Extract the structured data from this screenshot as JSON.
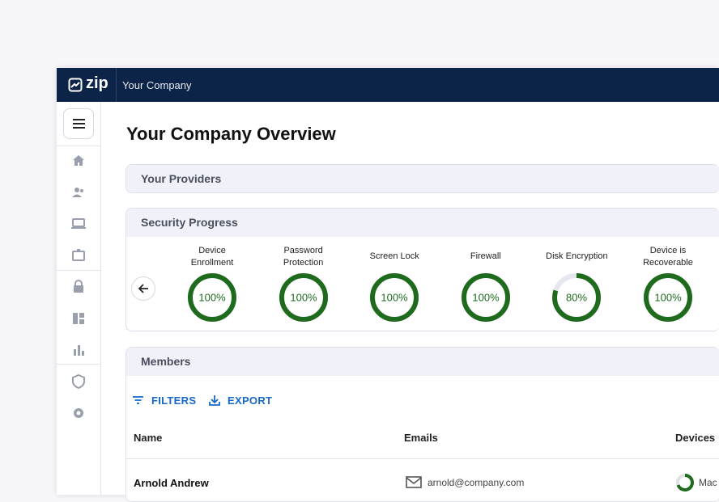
{
  "header": {
    "logo": "zip",
    "company": "Your Company"
  },
  "main": {
    "title": "Your Company Overview",
    "providers": {
      "title": "Your Providers"
    },
    "security_progress": {
      "title": "Security Progress",
      "items": [
        {
          "label_lines": [
            "Device",
            "Enrollment"
          ],
          "value": 100,
          "value_label": "100%"
        },
        {
          "label_lines": [
            "Password",
            "Protection"
          ],
          "value": 100,
          "value_label": "100%"
        },
        {
          "label_lines": [
            "Screen Lock"
          ],
          "value": 100,
          "value_label": "100%"
        },
        {
          "label_lines": [
            "Firewall"
          ],
          "value": 100,
          "value_label": "100%"
        },
        {
          "label_lines": [
            "Disk Encryption"
          ],
          "value": 80,
          "value_label": "80%"
        },
        {
          "label_lines": [
            "Device is",
            "Recoverable"
          ],
          "value": 100,
          "value_label": "100%"
        }
      ]
    },
    "members": {
      "title": "Members",
      "filters": "FILTERS",
      "export": "EXPORT",
      "table": {
        "columns": [
          "Name",
          "Emails",
          "Devices"
        ],
        "rows": [
          [
            "Arnold Andrew",
            "arnold@company.com",
            "Mac"
          ]
        ]
      }
    }
  }
}
